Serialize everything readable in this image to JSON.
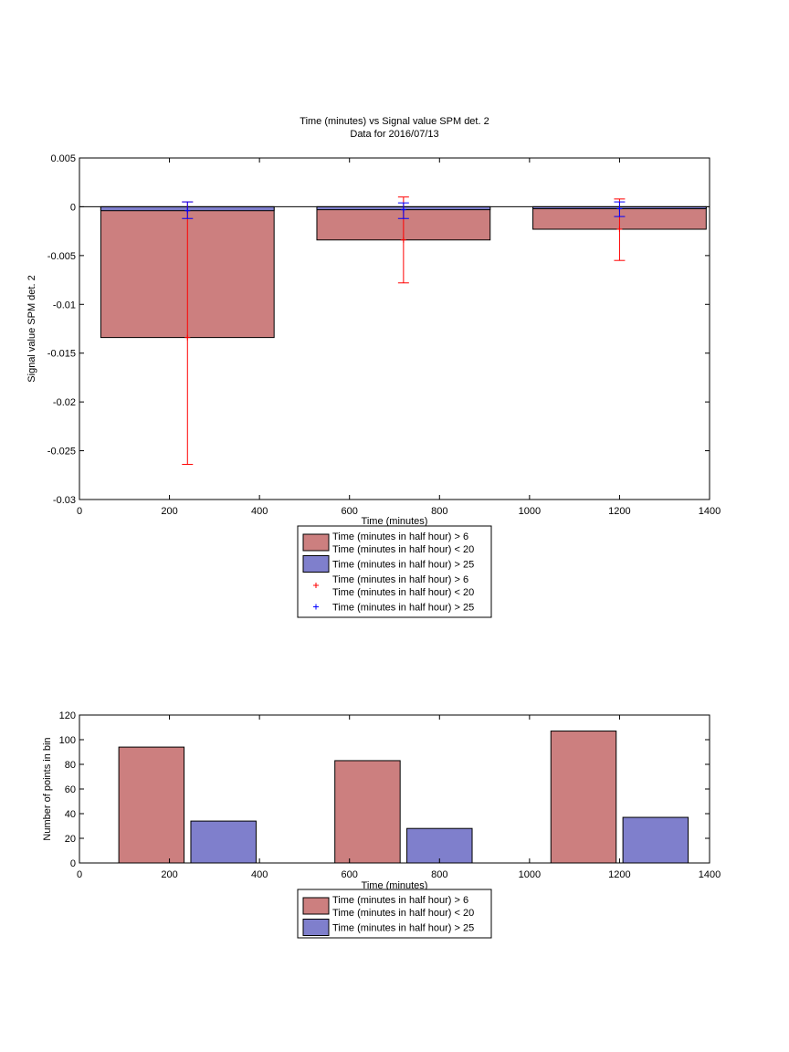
{
  "figure": {
    "title_line1": "Time (minutes) vs Signal value SPM det. 2",
    "title_line2": "Data for 2016/07/13"
  },
  "chart_data": [
    {
      "type": "bar",
      "title": "Time (minutes) vs Signal value SPM det. 2",
      "subtitle": "Data for 2016/07/13",
      "xlabel": "Time (minutes)",
      "ylabel": "Signal value SPM det. 2",
      "xlim": [
        0,
        1400
      ],
      "ylim": [
        -0.03,
        0.005
      ],
      "xticks": [
        0,
        200,
        400,
        600,
        800,
        1000,
        1200,
        1400
      ],
      "yticks": [
        0.005,
        0,
        -0.005,
        -0.01,
        -0.015,
        -0.02,
        -0.025,
        -0.03
      ],
      "ytick_labels": [
        "0.005",
        "0",
        "-0.005",
        "-0.01",
        "-0.015",
        "-0.02",
        "-0.025",
        "-0.03"
      ],
      "grid": false,
      "bar_layout": "overlaid",
      "x": [
        240,
        720,
        1200
      ],
      "bar_width": 385,
      "series": [
        {
          "name": "Time (minutes in half hour) > 6\nTime (minutes in half hour) < 20",
          "legend_line1": "Time (minutes in half hour) > 6",
          "legend_line2": "Time (minutes in half hour) < 20",
          "color": "#cc7f7f",
          "values": [
            -0.0134,
            -0.0034,
            -0.0023
          ],
          "err_low": [
            -0.0264,
            -0.0078,
            -0.0055
          ],
          "err_high": [
            0.0005,
            0.001,
            0.0008
          ],
          "errbar_color": "#ff0000"
        },
        {
          "name": "Time (minutes in half hour) > 25",
          "legend_line1": "Time (minutes in half hour) > 25",
          "color": "#7f7fcc",
          "values": [
            -0.0004,
            -0.0003,
            -0.0002
          ],
          "err_low": [
            -0.0012,
            -0.0012,
            -0.001
          ],
          "err_high": [
            0.0005,
            0.0004,
            0.0005
          ],
          "errbar_color": "#0000ff"
        }
      ],
      "legend": {
        "placement": "below-axes",
        "entries": [
          {
            "kind": "patch",
            "color": "#cc7f7f",
            "label_line1": "Time (minutes in half hour) > 6",
            "label_line2": "Time (minutes in half hour) < 20"
          },
          {
            "kind": "patch",
            "color": "#7f7fcc",
            "label_line1": "Time (minutes in half hour) > 25"
          },
          {
            "kind": "marker",
            "color": "#ff0000",
            "marker": "+",
            "label_line1": "Time (minutes in half hour) > 6",
            "label_line2": "Time (minutes in half hour) < 20"
          },
          {
            "kind": "marker",
            "color": "#0000ff",
            "marker": "+",
            "label_line1": "Time (minutes in half hour) > 25"
          }
        ]
      }
    },
    {
      "type": "bar",
      "xlabel": "Time (minutes)",
      "ylabel": "Number of points in bin",
      "xlim": [
        0,
        1400
      ],
      "ylim": [
        0,
        120
      ],
      "xticks": [
        0,
        200,
        400,
        600,
        800,
        1000,
        1200,
        1400
      ],
      "yticks": [
        0,
        20,
        40,
        60,
        80,
        100,
        120
      ],
      "grid": false,
      "bar_layout": "grouped",
      "bar_width": 145,
      "series": [
        {
          "name": "Time (minutes in half hour) > 6\nTime (minutes in half hour) < 20",
          "color": "#cc7f7f",
          "x": [
            160,
            640,
            1120
          ],
          "values": [
            94,
            83,
            107
          ]
        },
        {
          "name": "Time (minutes in half hour) > 25",
          "color": "#7f7fcc",
          "x": [
            320,
            800,
            1280
          ],
          "values": [
            34,
            28,
            37
          ]
        }
      ],
      "legend": {
        "placement": "below-axes",
        "entries": [
          {
            "kind": "patch",
            "color": "#cc7f7f",
            "label_line1": "Time (minutes in half hour) > 6",
            "label_line2": "Time (minutes in half hour) < 20"
          },
          {
            "kind": "patch",
            "color": "#7f7fcc",
            "label_line1": "Time (minutes in half hour) > 25"
          }
        ]
      }
    }
  ]
}
